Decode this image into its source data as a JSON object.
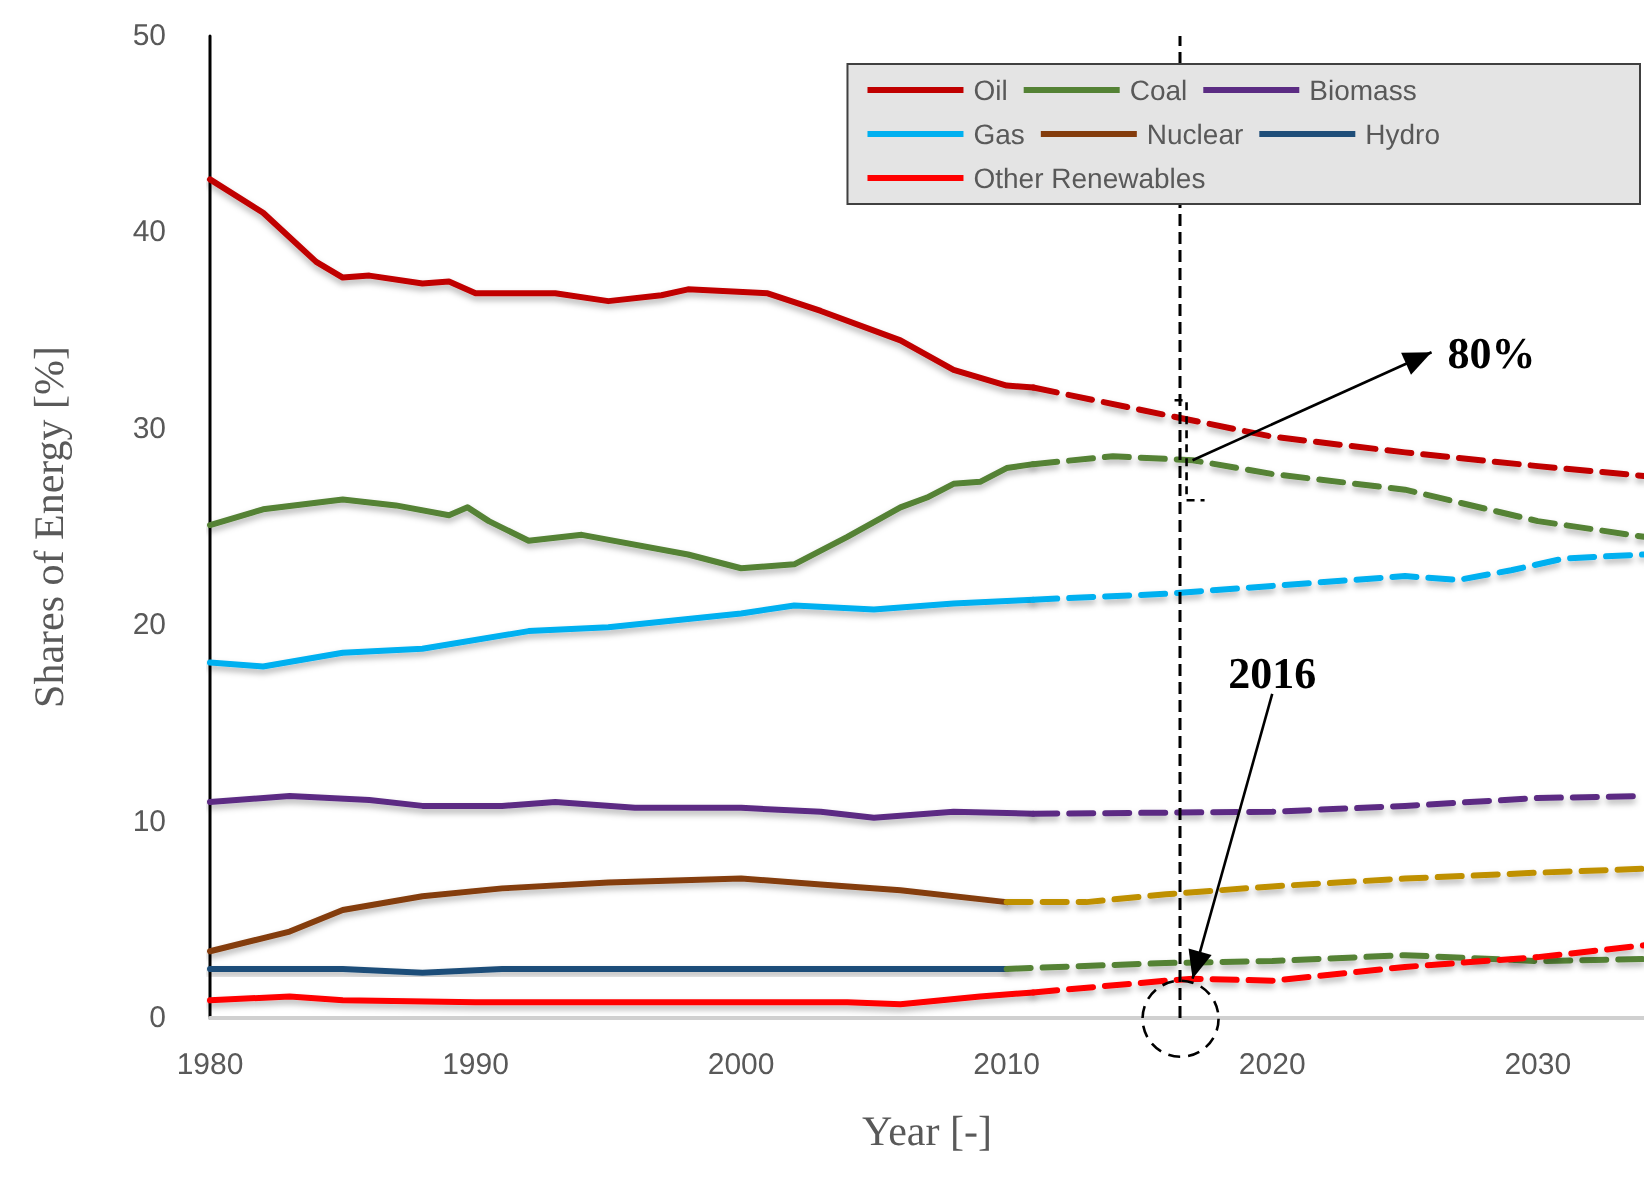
{
  "chart_data": {
    "type": "line",
    "xlabel": "Year [-]",
    "ylabel": "Shares of Energy [%]",
    "xlim": [
      1980,
      2034
    ],
    "xticks": [
      1980,
      1990,
      2000,
      2010,
      2020,
      2030
    ],
    "ylim": [
      0,
      50
    ],
    "yticks": [
      0,
      10,
      20,
      30,
      40,
      50
    ],
    "grid": false,
    "legend": "top right",
    "marker": "none",
    "line_style": "solid",
    "series": [
      {
        "name": "Oil",
        "color": "#c00000",
        "x": [
          1980,
          1982,
          1984,
          1985,
          1986,
          1988,
          1989,
          1990,
          1993,
          1995,
          1997,
          1998,
          2001,
          2003,
          2006,
          2008,
          2010,
          2011
        ],
        "values": [
          42.7,
          41,
          38.5,
          37.7,
          37.8,
          37.4,
          37.5,
          36.9,
          36.9,
          36.5,
          36.8,
          37.1,
          36.9,
          36,
          34.5,
          33,
          32.2,
          32.1
        ]
      },
      {
        "name": "Coal",
        "color": "#548235",
        "x": [
          1980,
          1982,
          1985,
          1987,
          1989,
          1989.7,
          1990.5,
          1992,
          1994,
          1998,
          2000,
          2002,
          2004,
          2006,
          2007,
          2008,
          2009,
          2010,
          2011
        ],
        "values": [
          25.1,
          25.9,
          26.4,
          26.1,
          25.6,
          26,
          25.3,
          24.3,
          24.6,
          23.6,
          22.9,
          23.1,
          24.5,
          26,
          26.5,
          27.2,
          27.3,
          28,
          28.2
        ]
      },
      {
        "name": "Biomass",
        "color": "#5b2c83",
        "x": [
          1980,
          1983,
          1986,
          1988,
          1991,
          1993,
          1996,
          2000,
          2003,
          2005,
          2008,
          2011
        ],
        "values": [
          11,
          11.3,
          11.1,
          10.8,
          10.8,
          11,
          10.7,
          10.7,
          10.5,
          10.2,
          10.5,
          10.4
        ]
      },
      {
        "name": "Gas",
        "color": "#00b0f0",
        "x": [
          1980,
          1982,
          1985,
          1988,
          1992,
          1995,
          2000,
          2002,
          2005,
          2008,
          2011
        ],
        "values": [
          18.1,
          17.9,
          18.6,
          18.8,
          19.7,
          19.9,
          20.6,
          21,
          20.8,
          21.1,
          21.3
        ]
      },
      {
        "name": "Nuclear",
        "color": "#843c0c",
        "x": [
          1980,
          1983,
          1985,
          1988,
          1991,
          1995,
          2000,
          2003,
          2006,
          2010
        ],
        "values": [
          3.4,
          4.4,
          5.5,
          6.2,
          6.6,
          6.9,
          7.1,
          6.8,
          6.5,
          5.9
        ]
      },
      {
        "name": "Hydro",
        "color": "#1f4e79",
        "x": [
          1980,
          1985,
          1988,
          1991,
          2000,
          2010
        ],
        "values": [
          2.5,
          2.5,
          2.3,
          2.5,
          2.5,
          2.5
        ]
      },
      {
        "name": "Other Renewables",
        "color": "#ff0000",
        "x": [
          1980,
          1983,
          1985,
          1990,
          2000,
          2004,
          2006,
          2009,
          2011
        ],
        "values": [
          0.9,
          1.1,
          0.9,
          0.8,
          0.8,
          0.8,
          0.7,
          1.1,
          1.3
        ]
      },
      {
        "color": "#c00000",
        "line_style": "dashed",
        "x": [
          2011,
          2016,
          2020,
          2025,
          2030,
          2034
        ],
        "values": [
          32.1,
          30.7,
          29.6,
          28.8,
          28.1,
          27.6
        ]
      },
      {
        "color": "#548235",
        "line_style": "dashed",
        "x": [
          2011,
          2014,
          2017,
          2020,
          2025,
          2030,
          2034
        ],
        "values": [
          28.2,
          28.6,
          28.4,
          27.7,
          26.9,
          25.3,
          24.5
        ]
      },
      {
        "color": "#5b2c83",
        "line_style": "dashed",
        "x": [
          2011,
          2020,
          2025,
          2030,
          2034
        ],
        "values": [
          10.4,
          10.5,
          10.8,
          11.2,
          11.3
        ]
      },
      {
        "color": "#00b0f0",
        "line_style": "dashed",
        "x": [
          2011,
          2016,
          2020,
          2025,
          2027,
          2029,
          2031,
          2034
        ],
        "values": [
          21.3,
          21.6,
          22,
          22.5,
          22.3,
          22.8,
          23.4,
          23.6
        ]
      },
      {
        "color": "#bf9000",
        "line_style": "dashed",
        "x": [
          2010,
          2013,
          2016,
          2020,
          2025,
          2030,
          2034
        ],
        "values": [
          5.9,
          5.9,
          6.3,
          6.7,
          7.1,
          7.4,
          7.6
        ]
      },
      {
        "color": "#548235",
        "line_style": "dashed",
        "x": [
          2010,
          2016,
          2020,
          2025,
          2030,
          2034
        ],
        "values": [
          2.5,
          2.8,
          2.9,
          3.2,
          2.9,
          3
        ]
      },
      {
        "color": "#ff0000",
        "line_style": "dashed",
        "x": [
          2011,
          2016,
          2017,
          2020,
          2025,
          2030,
          2034
        ],
        "values": [
          1.3,
          1.9,
          2,
          1.9,
          2.6,
          3.1,
          3.7
        ]
      }
    ],
    "ref_lines": [
      {
        "axis": "x",
        "value": 2016.5,
        "color": "#000000",
        "line_style": "dashed"
      }
    ],
    "annotations": [
      {
        "text": "80%",
        "x": 2017,
        "y": 28.4
      },
      {
        "text": "2016",
        "x": 2017,
        "y": 2
      }
    ]
  }
}
